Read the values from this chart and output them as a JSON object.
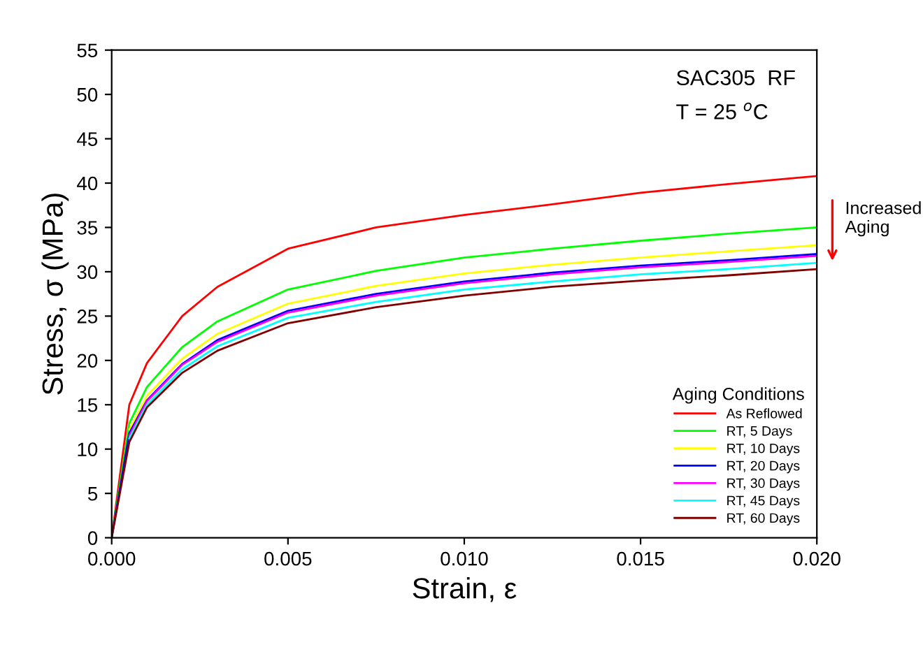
{
  "chart_data": {
    "type": "line",
    "xlabel": "Strain, ε",
    "ylabel": "Stress, σ (MPa)",
    "x": [
      0.0005,
      0.001,
      0.002,
      0.003,
      0.005,
      0.0075,
      0.01,
      0.0125,
      0.015,
      0.0175,
      0.02
    ],
    "series": [
      {
        "name": "As Reflowed",
        "color": "#ff0000",
        "x": [
          0,
          0.0005,
          0.001,
          0.002,
          0.003,
          0.005,
          0.0075,
          0.01,
          0.0125,
          0.015,
          0.0175,
          0.02
        ],
        "values": [
          0,
          15,
          19.7,
          25,
          28.3,
          32.6,
          35,
          36.4,
          37.6,
          38.9,
          39.9,
          40.8
        ]
      },
      {
        "name": "RT, 5 Days",
        "color": "#00ff00",
        "x": [
          0,
          0.0005,
          0.001,
          0.002,
          0.003,
          0.005,
          0.0075,
          0.01,
          0.0125,
          0.015,
          0.0175,
          0.02
        ],
        "values": [
          0,
          12.9,
          17,
          21.5,
          24.4,
          28,
          30.1,
          31.6,
          32.6,
          33.5,
          34.3,
          35.0
        ]
      },
      {
        "name": "RT, 10 Days",
        "color": "#ffff00",
        "values": [
          12.2,
          16,
          20.2,
          23,
          26.4,
          28.4,
          29.8,
          30.8,
          31.6,
          32.3,
          33.0
        ]
      },
      {
        "name": "RT, 20 Days",
        "color": "#0000ff",
        "x": [
          0,
          0.0005,
          0.001,
          0.002,
          0.003,
          0.005,
          0.0075,
          0.01,
          0.0125,
          0.015,
          0.0175,
          0.02
        ],
        "values": [
          0,
          11.8,
          15.5,
          19.6,
          22.3,
          25.6,
          27.5,
          28.9,
          29.9,
          30.7,
          31.3,
          32.0
        ]
      },
      {
        "name": "RT, 30 Days",
        "color": "#ff00ff",
        "values": [
          11.5,
          15.4,
          19.5,
          22.1,
          25.4,
          27.3,
          28.7,
          29.7,
          30.5,
          31.1,
          31.8
        ]
      },
      {
        "name": "RT, 45 Days",
        "color": "#00ffff",
        "values": [
          11.2,
          15,
          19,
          21.6,
          24.8,
          26.6,
          28,
          28.9,
          29.7,
          30.3,
          31.0
        ]
      },
      {
        "name": "RT, 60 Days",
        "color": "#800000",
        "x": [
          0,
          0.0005,
          0.001,
          0.002,
          0.003,
          0.005,
          0.0075,
          0.01,
          0.0125,
          0.015,
          0.0175,
          0.02
        ],
        "values": [
          0,
          10.8,
          14.7,
          18.6,
          21.1,
          24.2,
          26,
          27.3,
          28.3,
          29,
          29.6,
          30.3
        ]
      }
    ],
    "legend_title": "Aging Conditions",
    "legend": "bottom right",
    "grid": false,
    "marker": "none",
    "line_style": "solid",
    "xlim": [
      0,
      0.02
    ],
    "xticks": [
      {
        "value": 0,
        "label": "0.000"
      },
      {
        "value": 0.005,
        "label": "0.005"
      },
      {
        "value": 0.01,
        "label": "0.010"
      },
      {
        "value": 0.015,
        "label": "0.015"
      },
      {
        "value": 0.02,
        "label": "0.020"
      }
    ],
    "ylim": [
      0,
      55
    ],
    "yticks": [
      0,
      5,
      10,
      15,
      20,
      25,
      30,
      35,
      40,
      45,
      50,
      55
    ],
    "annotations": [
      "SAC305  RF",
      "T = 25 $^{o}$C",
      "Increased\nAging"
    ]
  }
}
